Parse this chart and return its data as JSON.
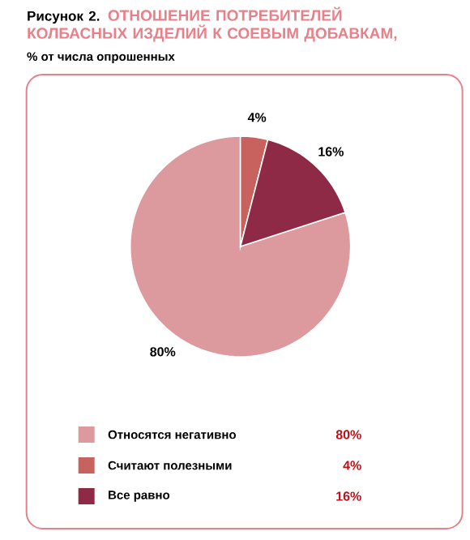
{
  "chart_data": {
    "type": "pie",
    "title": "ОТНОШЕНИЕ ПОТРЕБИТЕЛЕЙ КОЛБАСНЫХ ИЗДЕЛИЙ К СОЕВЫМ ДОБАВКАМ,",
    "subtitle": "% от числа опрошенных",
    "annotations": [
      "Рисунок 2."
    ],
    "categories": [
      "Относятся негативно",
      "Считают полезными",
      "Все равно"
    ],
    "values": [
      80,
      4,
      16
    ],
    "colors": [
      "#dc9a9e",
      "#c8625f",
      "#8e2a45"
    ],
    "value_labels": [
      "80%",
      "4%",
      "16%"
    ],
    "legend": "bottom"
  }
}
